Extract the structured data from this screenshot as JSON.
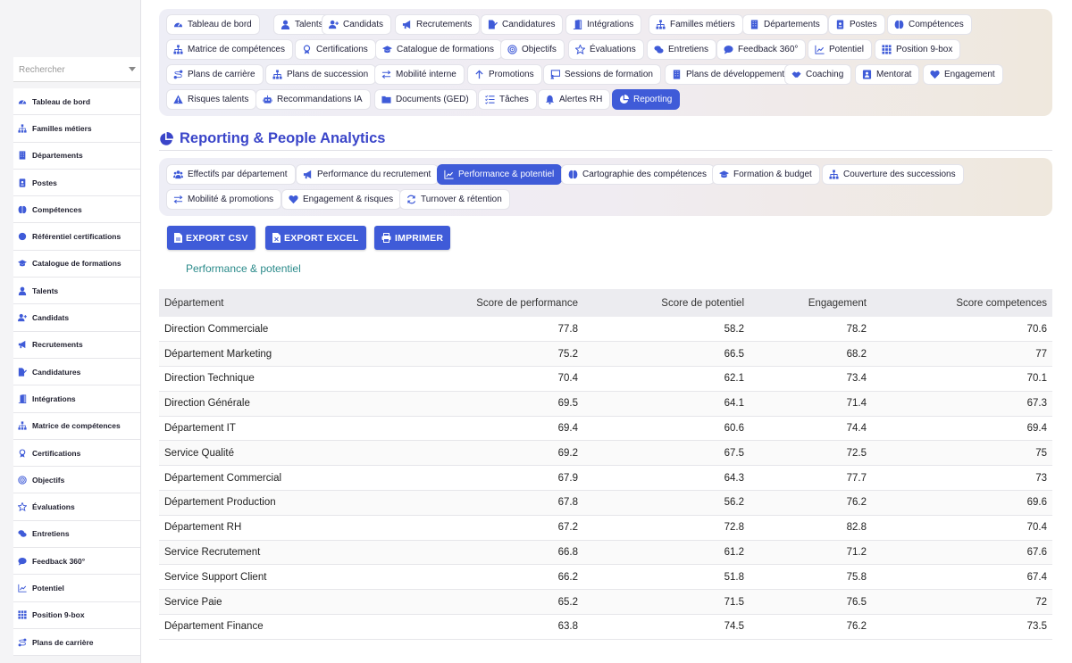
{
  "sidebar": {
    "search_placeholder": "Rechercher",
    "items": [
      {
        "label": "Tableau de bord",
        "icon": "gauge-icon"
      },
      {
        "label": "Familles métiers",
        "icon": "sitemap-icon"
      },
      {
        "label": "Départements",
        "icon": "building-icon"
      },
      {
        "label": "Postes",
        "icon": "id-badge-icon"
      },
      {
        "label": "Compétences",
        "icon": "brain-icon"
      },
      {
        "label": "Référentiel certifications",
        "icon": "certificate-icon"
      },
      {
        "label": "Catalogue de formations",
        "icon": "graduation-cap-icon"
      },
      {
        "label": "Talents",
        "icon": "user-icon"
      },
      {
        "label": "Candidats",
        "icon": "user-plus-icon"
      },
      {
        "label": "Recrutements",
        "icon": "megaphone-icon"
      },
      {
        "label": "Candidatures",
        "icon": "file-signature-icon"
      },
      {
        "label": "Intégrations",
        "icon": "door-icon"
      },
      {
        "label": "Matrice de compétences",
        "icon": "sitemap-icon"
      },
      {
        "label": "Certifications",
        "icon": "award-icon"
      },
      {
        "label": "Objectifs",
        "icon": "target-icon"
      },
      {
        "label": "Évaluations",
        "icon": "star-icon"
      },
      {
        "label": "Entretiens",
        "icon": "comments-icon"
      },
      {
        "label": "Feedback 360°",
        "icon": "comment-icon"
      },
      {
        "label": "Potentiel",
        "icon": "chart-line-icon"
      },
      {
        "label": "Position 9-box",
        "icon": "grid-icon"
      },
      {
        "label": "Plans de carrière",
        "icon": "route-icon"
      }
    ]
  },
  "topnav": {
    "items": [
      {
        "label": "Tableau de bord",
        "icon": "gauge-icon"
      },
      {
        "label": "Talents",
        "icon": "user-icon"
      },
      {
        "label": "Candidats",
        "icon": "user-plus-icon"
      },
      {
        "label": "Recrutements",
        "icon": "megaphone-icon"
      },
      {
        "label": "Candidatures",
        "icon": "file-signature-icon"
      },
      {
        "label": "Intégrations",
        "icon": "door-icon"
      },
      {
        "label": "Familles métiers",
        "icon": "sitemap-icon"
      },
      {
        "label": "Départements",
        "icon": "building-icon"
      },
      {
        "label": "Postes",
        "icon": "id-badge-icon"
      },
      {
        "label": "Compétences",
        "icon": "brain-icon"
      },
      {
        "label": "Matrice de compétences",
        "icon": "sitemap-icon"
      },
      {
        "label": "Certifications",
        "icon": "award-icon"
      },
      {
        "label": "Catalogue de formations",
        "icon": "graduation-cap-icon"
      },
      {
        "label": "Objectifs",
        "icon": "target-icon"
      },
      {
        "label": "Évaluations",
        "icon": "star-icon"
      },
      {
        "label": "Entretiens",
        "icon": "comments-icon"
      },
      {
        "label": "Feedback 360°",
        "icon": "comment-icon"
      },
      {
        "label": "Potentiel",
        "icon": "chart-line-icon"
      },
      {
        "label": "Position 9-box",
        "icon": "grid-icon"
      },
      {
        "label": "Plans de carrière",
        "icon": "route-icon"
      },
      {
        "label": "Plans de succession",
        "icon": "sitemap-icon"
      },
      {
        "label": "Mobilité interne",
        "icon": "exchange-icon"
      },
      {
        "label": "Promotions",
        "icon": "arrow-up-icon"
      },
      {
        "label": "Sessions de formation",
        "icon": "chalkboard-icon"
      },
      {
        "label": "Plans de développement",
        "icon": "building-icon"
      },
      {
        "label": "Coaching",
        "icon": "handshake-icon"
      },
      {
        "label": "Mentorat",
        "icon": "chalkboard-teacher-icon"
      },
      {
        "label": "Engagement",
        "icon": "heart-icon"
      },
      {
        "label": "Risques talents",
        "icon": "warning-icon"
      },
      {
        "label": "Recommandations IA",
        "icon": "robot-icon"
      },
      {
        "label": "Documents (GED)",
        "icon": "folder-icon"
      },
      {
        "label": "Tâches",
        "icon": "tasks-icon"
      },
      {
        "label": "Alertes RH",
        "icon": "bell-icon"
      },
      {
        "label": "Reporting",
        "icon": "chart-pie-icon",
        "active": true
      }
    ]
  },
  "page": {
    "title": "Reporting & People Analytics",
    "title_icon": "chart-pie-icon"
  },
  "subnav": {
    "items": [
      {
        "label": "Effectifs par département",
        "icon": "users-icon"
      },
      {
        "label": "Performance du recrutement",
        "icon": "megaphone-icon"
      },
      {
        "label": "Performance & potentiel",
        "icon": "chart-line-icon",
        "active": true
      },
      {
        "label": "Cartographie des compétences",
        "icon": "brain-icon"
      },
      {
        "label": "Formation & budget",
        "icon": "graduation-cap-icon"
      },
      {
        "label": "Couverture des successions",
        "icon": "sitemap-icon"
      },
      {
        "label": "Mobilité & promotions",
        "icon": "exchange-icon"
      },
      {
        "label": "Engagement & risques",
        "icon": "heart-icon"
      },
      {
        "label": "Turnover & rétention",
        "icon": "refresh-icon"
      }
    ]
  },
  "actions": {
    "export_csv": "EXPORT CSV",
    "export_excel": "EXPORT EXCEL",
    "print": "IMPRIMER"
  },
  "colors": {
    "accent": "#3f5bd8",
    "title": "#3a45c9",
    "section_label": "#2a8a8a"
  },
  "report": {
    "section_title": "Performance & potentiel",
    "columns": [
      "Département",
      "Score de performance",
      "Score de potentiel",
      "Engagement",
      "Score competences"
    ],
    "rows": [
      [
        "Direction Commerciale",
        "77.8",
        "58.2",
        "78.2",
        "70.6"
      ],
      [
        "Département Marketing",
        "75.2",
        "66.5",
        "68.2",
        "77"
      ],
      [
        "Direction Technique",
        "70.4",
        "62.1",
        "73.4",
        "70.1"
      ],
      [
        "Direction Générale",
        "69.5",
        "64.1",
        "71.4",
        "67.3"
      ],
      [
        "Département IT",
        "69.4",
        "60.6",
        "74.4",
        "69.4"
      ],
      [
        "Service Qualité",
        "69.2",
        "67.5",
        "72.5",
        "75"
      ],
      [
        "Département Commercial",
        "67.9",
        "64.3",
        "77.7",
        "73"
      ],
      [
        "Département Production",
        "67.8",
        "56.2",
        "76.2",
        "69.6"
      ],
      [
        "Département RH",
        "67.2",
        "72.8",
        "82.8",
        "70.4"
      ],
      [
        "Service Recrutement",
        "66.8",
        "61.2",
        "71.2",
        "67.6"
      ],
      [
        "Service Support Client",
        "66.2",
        "51.8",
        "75.8",
        "67.4"
      ],
      [
        "Service Paie",
        "65.2",
        "71.5",
        "76.5",
        "72"
      ],
      [
        "Département Finance",
        "63.8",
        "74.5",
        "76.2",
        "73.5"
      ]
    ]
  }
}
